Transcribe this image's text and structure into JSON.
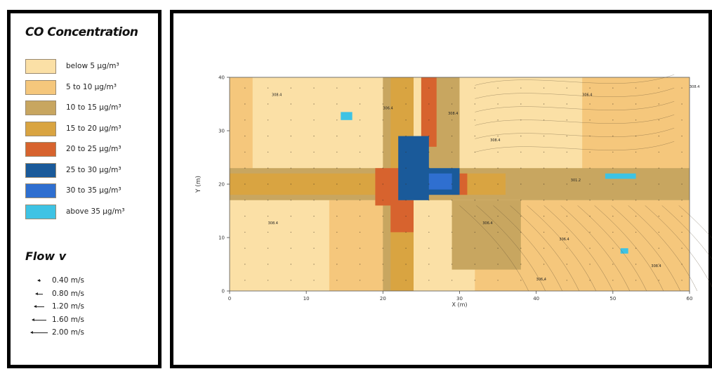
{
  "legend": {
    "title": "CO Concentration",
    "items": [
      {
        "label": "below  5 µg/m³",
        "color": "#fbe0a6"
      },
      {
        "label": "5 to  10 µg/m³",
        "color": "#f5c77c"
      },
      {
        "label": "10 to  15 µg/m³",
        "color": "#c8a660"
      },
      {
        "label": "15 to  20 µg/m³",
        "color": "#d9a441"
      },
      {
        "label": "20 to  25 µg/m³",
        "color": "#d7632e"
      },
      {
        "label": "25 to  30 µg/m³",
        "color": "#1a5a9a"
      },
      {
        "label": "30 to  35 µg/m³",
        "color": "#2f6fd0"
      },
      {
        "label": "above  35 µg/m³",
        "color": "#3ec3e4"
      }
    ]
  },
  "flow_legend": {
    "title": "Flow v",
    "items": [
      {
        "label": "0.40 m/s",
        "value": 0.4
      },
      {
        "label": "0.80 m/s",
        "value": 0.8
      },
      {
        "label": "1.20 m/s",
        "value": 1.2
      },
      {
        "label": "1.60 m/s",
        "value": 1.6
      },
      {
        "label": "2.00 m/s",
        "value": 2.0
      }
    ]
  },
  "chart_data": {
    "type": "heatmap",
    "xlabel": "X (m)",
    "ylabel": "Y (m)",
    "xlim": [
      0,
      60
    ],
    "ylim": [
      0,
      40
    ],
    "xticks": [
      0,
      10,
      20,
      30,
      40,
      50,
      60
    ],
    "yticks": [
      0,
      10,
      20,
      30,
      40
    ],
    "regions": [
      {
        "level": 1,
        "x": [
          0,
          60
        ],
        "y": [
          0,
          40
        ]
      },
      {
        "level": 2,
        "x": [
          0,
          3
        ],
        "y": [
          22,
          40
        ]
      },
      {
        "level": 2,
        "x": [
          13,
          22
        ],
        "y": [
          0,
          17
        ]
      },
      {
        "level": 2,
        "x": [
          32,
          60
        ],
        "y": [
          0,
          17
        ]
      },
      {
        "level": 2,
        "x": [
          46,
          60
        ],
        "y": [
          22,
          40
        ]
      },
      {
        "level": 3,
        "x": [
          0,
          60
        ],
        "y": [
          17,
          23
        ]
      },
      {
        "level": 3,
        "x": [
          20,
          24
        ],
        "y": [
          0,
          40
        ]
      },
      {
        "level": 3,
        "x": [
          25,
          30
        ],
        "y": [
          23,
          40
        ]
      },
      {
        "level": 3,
        "x": [
          29,
          38
        ],
        "y": [
          4,
          17
        ]
      },
      {
        "level": 4,
        "x": [
          0,
          22
        ],
        "y": [
          18,
          22
        ]
      },
      {
        "level": 4,
        "x": [
          21,
          24
        ],
        "y": [
          0,
          40
        ]
      },
      {
        "level": 4,
        "x": [
          29,
          36
        ],
        "y": [
          18,
          22
        ]
      },
      {
        "level": 5,
        "x": [
          25,
          27
        ],
        "y": [
          27,
          40
        ]
      },
      {
        "level": 5,
        "x": [
          19,
          23
        ],
        "y": [
          16,
          23
        ]
      },
      {
        "level": 5,
        "x": [
          21,
          24
        ],
        "y": [
          11,
          17
        ]
      },
      {
        "level": 5,
        "x": [
          29,
          31
        ],
        "y": [
          18,
          22
        ]
      },
      {
        "level": 6,
        "x": [
          22,
          26
        ],
        "y": [
          17,
          29
        ]
      },
      {
        "level": 6,
        "x": [
          25,
          30
        ],
        "y": [
          18,
          23
        ]
      },
      {
        "level": 7,
        "x": [
          26,
          29
        ],
        "y": [
          19,
          22
        ]
      },
      {
        "level": 8,
        "x": [
          14.5,
          16
        ],
        "y": [
          32,
          33.5
        ]
      },
      {
        "level": 8,
        "x": [
          49,
          53
        ],
        "y": [
          21,
          22
        ]
      },
      {
        "level": 8,
        "x": [
          51,
          52
        ],
        "y": [
          7,
          8
        ]
      }
    ],
    "contour_labels": [
      {
        "text": "308.4",
        "x": 5.5,
        "y": 36.5
      },
      {
        "text": "306.4",
        "x": 20,
        "y": 34
      },
      {
        "text": "308.4",
        "x": 28.5,
        "y": 33
      },
      {
        "text": "306.4",
        "x": 46,
        "y": 36.5
      },
      {
        "text": "308.4",
        "x": 34,
        "y": 28
      },
      {
        "text": "301.2",
        "x": 44.5,
        "y": 20.5
      },
      {
        "text": "306.4",
        "x": 33,
        "y": 12.5
      },
      {
        "text": "306.4",
        "x": 43,
        "y": 9.5
      },
      {
        "text": "306.4",
        "x": 40,
        "y": 2
      },
      {
        "text": "308.4",
        "x": 55,
        "y": 4.5
      },
      {
        "text": "308.4",
        "x": 5,
        "y": 12.5
      },
      {
        "text": "308.4",
        "x": 60,
        "y": 38
      }
    ]
  }
}
